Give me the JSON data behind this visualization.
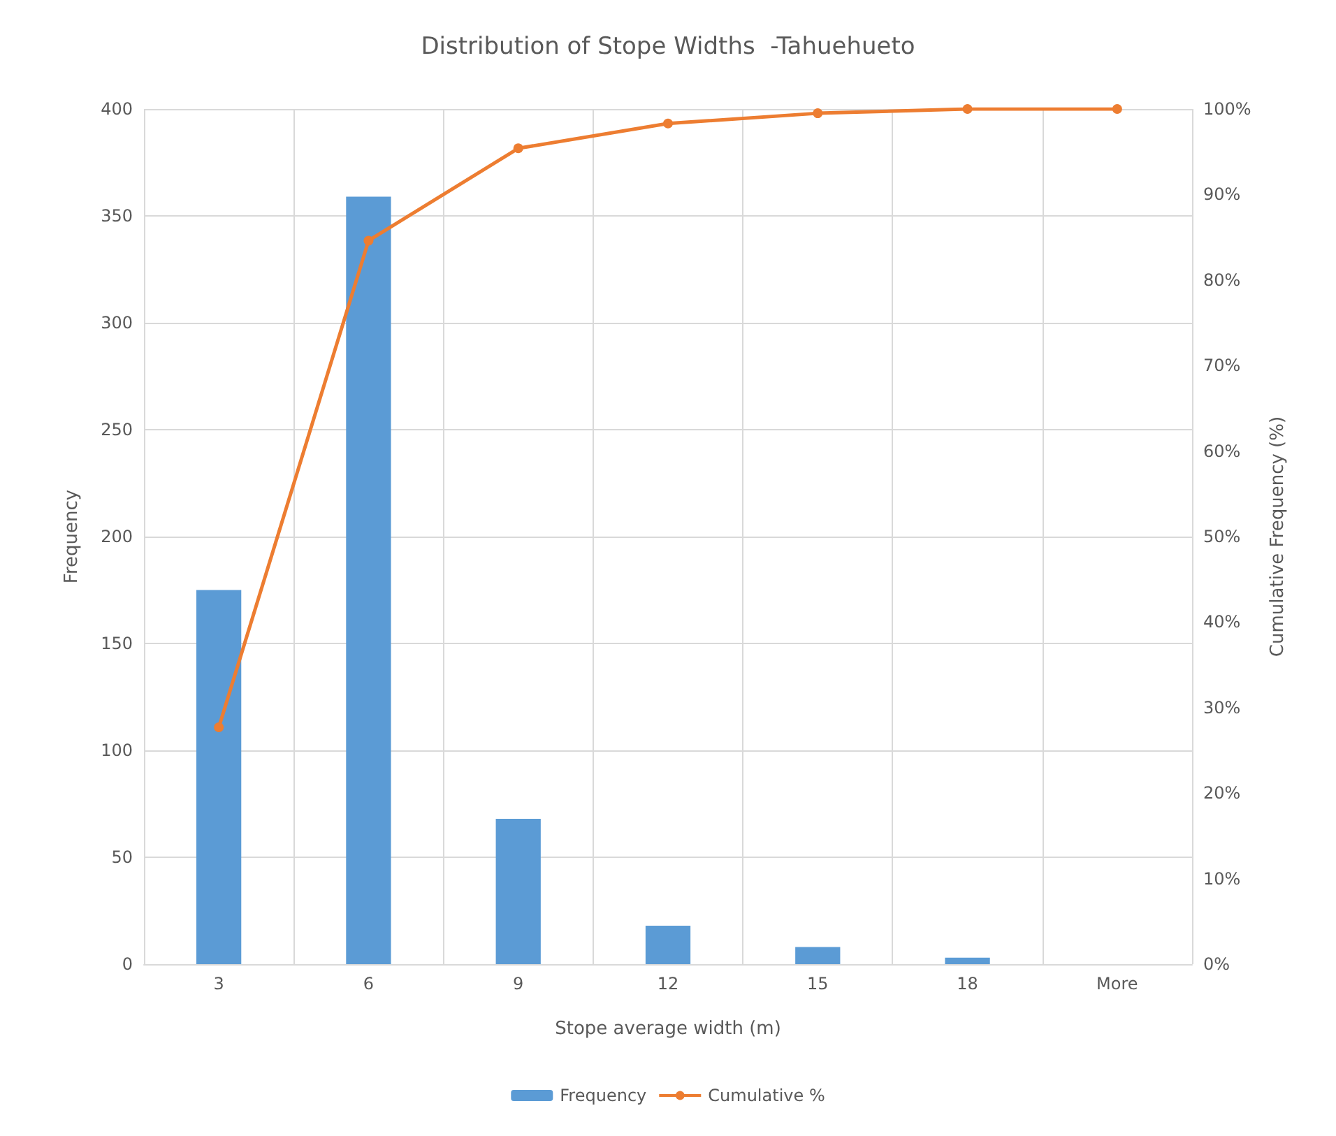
{
  "chart_data": {
    "type": "bar",
    "title": "Distribution of Stope Widths  -Tahuehueto",
    "xlabel": "Stope average width (m)",
    "ylabel": "Frequency",
    "y2label": "Cumulative Frequency (%)",
    "categories": [
      "3",
      "6",
      "9",
      "12",
      "15",
      "18",
      "More"
    ],
    "series": [
      {
        "name": "Frequency",
        "color": "#5b9bd5",
        "values": [
          175,
          359,
          68,
          18,
          8,
          3,
          0
        ]
      },
      {
        "name": "Cumulative %",
        "type": "line",
        "axis": "y2",
        "color": "#ed7d31",
        "values": [
          27.7,
          84.6,
          95.4,
          98.3,
          99.5,
          100,
          100
        ]
      }
    ],
    "ylim": [
      0,
      400
    ],
    "yticks": [
      0,
      50,
      100,
      150,
      200,
      250,
      300,
      350,
      400
    ],
    "y2lim": [
      0,
      100
    ],
    "y2ticks": [
      {
        "value": 0,
        "label": "0%"
      },
      {
        "value": 10,
        "label": "10%"
      },
      {
        "value": 20,
        "label": "20%"
      },
      {
        "value": 30,
        "label": "30%"
      },
      {
        "value": 40,
        "label": "40%"
      },
      {
        "value": 50,
        "label": "50%"
      },
      {
        "value": 60,
        "label": "60%"
      },
      {
        "value": 70,
        "label": "70%"
      },
      {
        "value": 80,
        "label": "80%"
      },
      {
        "value": 90,
        "label": "90%"
      },
      {
        "value": 100,
        "label": "100%"
      }
    ],
    "grid": true,
    "legend": "bottom",
    "marker": "circle"
  }
}
